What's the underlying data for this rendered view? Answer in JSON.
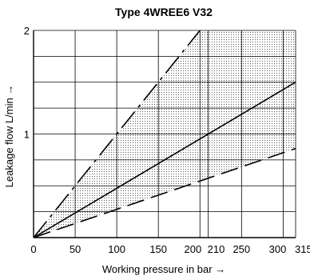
{
  "chart_data": {
    "type": "line",
    "title": "Type 4WREE6 V32",
    "xlabel": "Working pressure in bar →",
    "ylabel": "Leakage flow L/min →",
    "xlim": [
      0,
      315
    ],
    "ylim": [
      0,
      2
    ],
    "x_ticks": [
      {
        "value": 0,
        "label": "0"
      },
      {
        "value": 50,
        "label": "50"
      },
      {
        "value": 100,
        "label": "100"
      },
      {
        "value": 150,
        "label": "150"
      },
      {
        "value": 200,
        "label": "200"
      },
      {
        "value": 210,
        "label": "210"
      },
      {
        "value": 250,
        "label": "250"
      },
      {
        "value": 300,
        "label": "300"
      },
      {
        "value": 315,
        "label": "315"
      }
    ],
    "y_ticks": [
      {
        "value": 1,
        "label": "1"
      },
      {
        "value": 2,
        "label": "2"
      }
    ],
    "x_gridlines": [
      50,
      100,
      150,
      200,
      210,
      250,
      300,
      315
    ],
    "y_gridlines": [
      0.25,
      0.5,
      0.75,
      1.0,
      1.25,
      1.5,
      1.75,
      2.0
    ],
    "grid": true,
    "series": [
      {
        "style": "dash-dot",
        "x": [
          0,
          200
        ],
        "y": [
          0,
          2.0
        ]
      },
      {
        "style": "solid",
        "x": [
          0,
          315
        ],
        "y": [
          0,
          1.5
        ]
      },
      {
        "style": "dashed",
        "x": [
          0,
          315
        ],
        "y": [
          0,
          0.86
        ]
      }
    ],
    "shaded_region": {
      "pattern": "dotted",
      "between": [
        "dash-dot",
        "dashed"
      ]
    }
  }
}
